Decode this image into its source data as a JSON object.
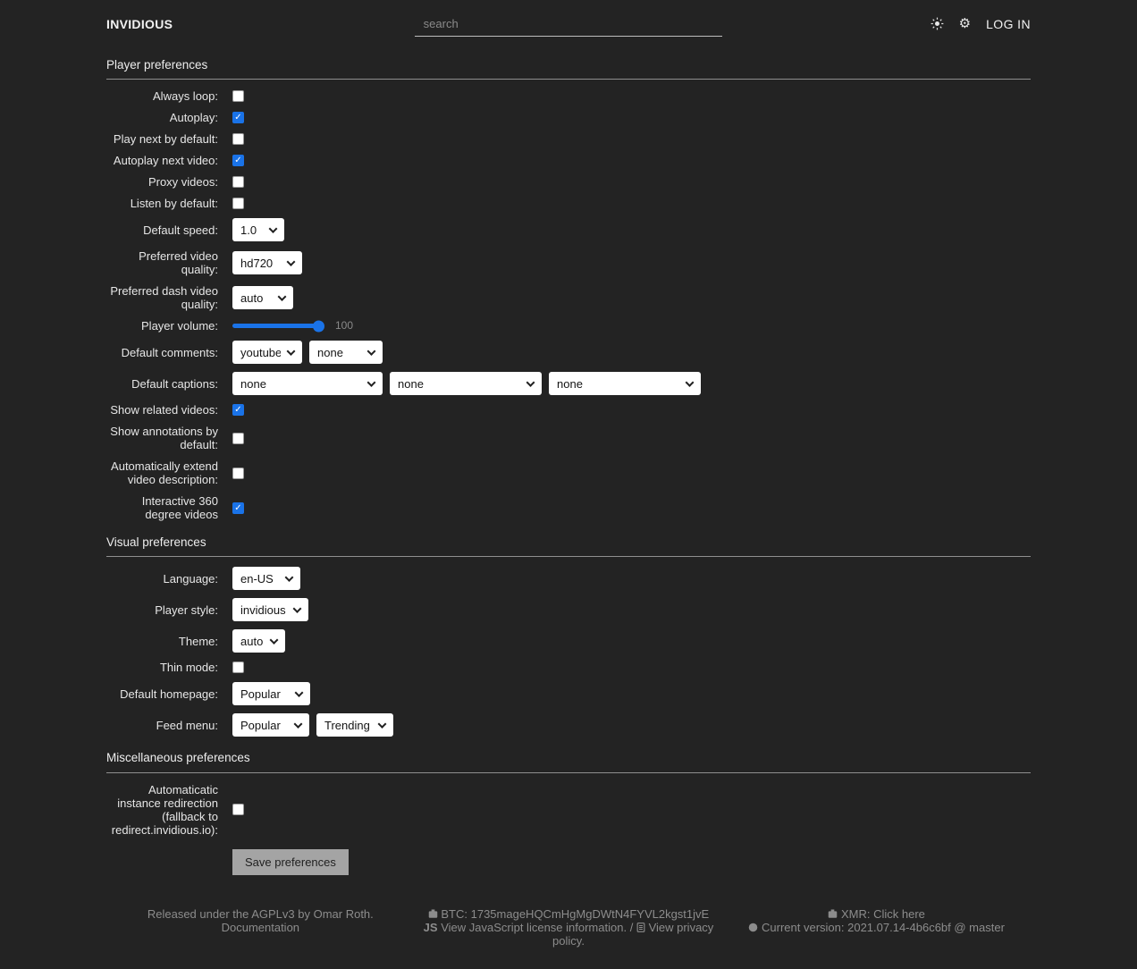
{
  "colors": {
    "background": "#232323",
    "accent": "#1a73e8",
    "muted_text": "#8c8c8c"
  },
  "header": {
    "logo": "INVIDIOUS",
    "search_placeholder": "search",
    "login_label": "LOG IN"
  },
  "save_label": "Save preferences",
  "sections": [
    {
      "id": "player",
      "title": "Player preferences",
      "rows": [
        {
          "name": "always-loop",
          "label": "Always loop:",
          "control": {
            "type": "checkbox",
            "checked": false
          }
        },
        {
          "name": "autoplay",
          "label": "Autoplay:",
          "control": {
            "type": "checkbox",
            "checked": true
          }
        },
        {
          "name": "play-next-by-default",
          "label": "Play next by default:",
          "control": {
            "type": "checkbox",
            "checked": false
          }
        },
        {
          "name": "autoplay-next-video",
          "label": "Autoplay next video:",
          "control": {
            "type": "checkbox",
            "checked": true
          }
        },
        {
          "name": "proxy-videos",
          "label": "Proxy videos:",
          "control": {
            "type": "checkbox",
            "checked": false
          }
        },
        {
          "name": "listen-by-default",
          "label": "Listen by default:",
          "control": {
            "type": "checkbox",
            "checked": false
          }
        },
        {
          "name": "default-speed",
          "label": "Default speed:",
          "control": {
            "type": "select",
            "values": [
              "1.0"
            ],
            "widths": [
              58
            ]
          }
        },
        {
          "name": "preferred-video-quality",
          "label": "Preferred video quality:",
          "control": {
            "type": "select",
            "values": [
              "hd720"
            ],
            "widths": [
              78
            ]
          }
        },
        {
          "name": "preferred-dash-video-quality",
          "label": "Preferred dash video quality:",
          "control": {
            "type": "select",
            "values": [
              "auto"
            ],
            "widths": [
              68
            ]
          }
        },
        {
          "name": "player-volume",
          "label": "Player volume:",
          "control": {
            "type": "range",
            "value": 100,
            "display": "100"
          }
        },
        {
          "name": "default-comments",
          "label": "Default comments:",
          "control": {
            "type": "select",
            "values": [
              "youtube",
              "none"
            ],
            "widths": [
              78,
              82
            ]
          }
        },
        {
          "name": "default-captions",
          "label": "Default captions:",
          "control": {
            "type": "select",
            "values": [
              "none",
              "none",
              "none"
            ],
            "widths": [
              168,
              170,
              170
            ]
          }
        },
        {
          "name": "show-related-videos",
          "label": "Show related videos:",
          "control": {
            "type": "checkbox",
            "checked": true
          }
        },
        {
          "name": "show-annotations-by-default",
          "label": "Show annotations by default:",
          "control": {
            "type": "checkbox",
            "checked": false
          }
        },
        {
          "name": "automatically-extend-video-description",
          "label": "Automatically extend video description:",
          "control": {
            "type": "checkbox",
            "checked": false
          }
        },
        {
          "name": "interactive-360-degree-videos",
          "label": "Interactive 360 degree videos",
          "control": {
            "type": "checkbox",
            "checked": true
          }
        }
      ]
    },
    {
      "id": "visual",
      "title": "Visual preferences",
      "rows": [
        {
          "name": "language",
          "label": "Language:",
          "control": {
            "type": "select",
            "values": [
              "en-US"
            ],
            "widths": [
              76
            ]
          }
        },
        {
          "name": "player-style",
          "label": "Player style:",
          "control": {
            "type": "select",
            "values": [
              "invidious"
            ],
            "widths": [
              85
            ]
          }
        },
        {
          "name": "theme",
          "label": "Theme:",
          "control": {
            "type": "select",
            "values": [
              "auto"
            ],
            "widths": [
              59
            ]
          }
        },
        {
          "name": "thin-mode",
          "label": "Thin mode:",
          "control": {
            "type": "checkbox",
            "checked": false
          }
        },
        {
          "name": "default-homepage",
          "label": "Default homepage:",
          "control": {
            "type": "select",
            "values": [
              "Popular"
            ],
            "widths": [
              87
            ]
          }
        },
        {
          "name": "feed-menu",
          "label": "Feed menu:",
          "control": {
            "type": "select",
            "values": [
              "Popular",
              "Trending"
            ],
            "widths": [
              86,
              86
            ]
          }
        }
      ]
    },
    {
      "id": "misc",
      "title": "Miscellaneous preferences",
      "rows": [
        {
          "name": "automatic-instance-redirection",
          "label": "Automaticatic instance redirection (fallback to redirect.invidious.io):",
          "control": {
            "type": "checkbox",
            "checked": false
          }
        }
      ]
    }
  ],
  "footer": {
    "left": {
      "line1": "Released under the AGPLv3 by Omar Roth.",
      "link": "Documentation"
    },
    "center": {
      "btc": "BTC: 1735mageHQCmHgMgDWtN4FYVL2kgst1jvE",
      "js_badge": "JS",
      "js_link": "View JavaScript license information.",
      "separator": "/",
      "privacy_link": "View privacy policy."
    },
    "right": {
      "xmr": "XMR: Click here",
      "version": "Current version: 2021.07.14-4b6c6bf @ master"
    }
  }
}
